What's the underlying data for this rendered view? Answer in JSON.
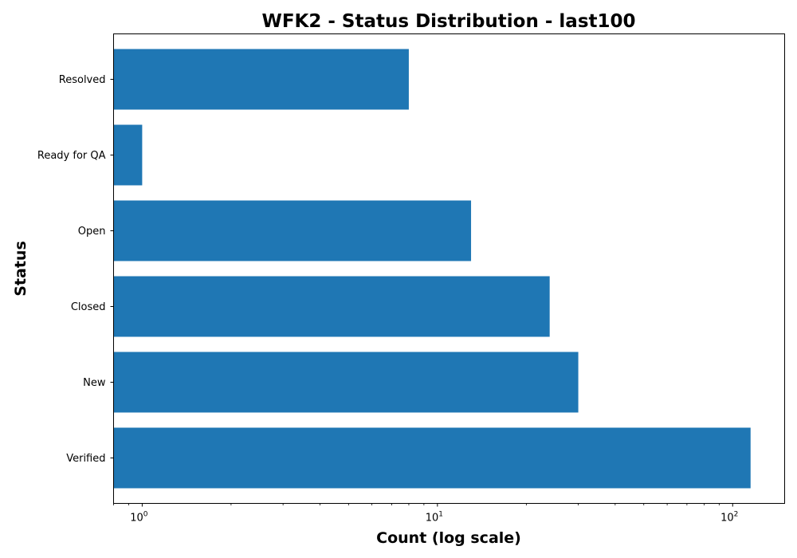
{
  "chart_data": {
    "type": "bar",
    "orientation": "horizontal",
    "title": "WFK2 - Status Distribution - last100",
    "xlabel": "Count (log scale)",
    "ylabel": "Status",
    "x_scale": "log",
    "xlim": [
      0.8,
      150
    ],
    "x_ticks": [
      {
        "value": 1,
        "base": "10",
        "exp": "0"
      },
      {
        "value": 10,
        "base": "10",
        "exp": "1"
      },
      {
        "value": 100,
        "base": "10",
        "exp": "2"
      }
    ],
    "categories": [
      "Verified",
      "New",
      "Closed",
      "Open",
      "Ready for QA",
      "Resolved"
    ],
    "values": [
      115,
      30,
      24,
      13,
      1,
      8
    ],
    "bar_color": "#1f77b4",
    "grid": false,
    "legend": "none"
  }
}
